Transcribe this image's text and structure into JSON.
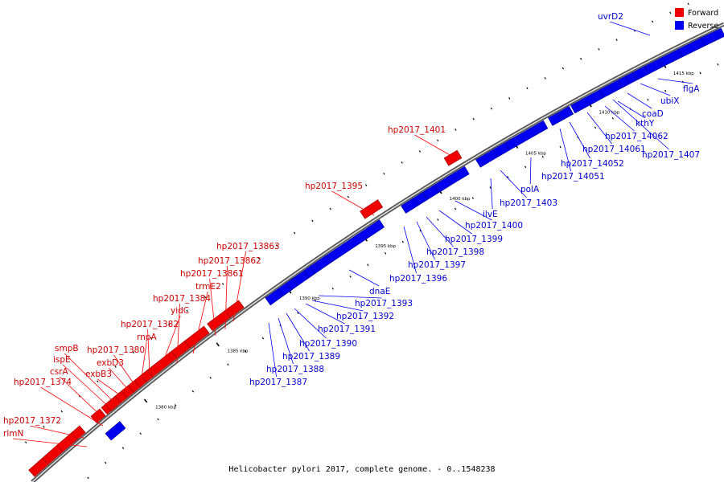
{
  "caption": "Helicobacter pylori 2017, complete genome. - 0..1548238",
  "legend": {
    "forward": {
      "label": "Forward",
      "color": "#ee0000"
    },
    "reverse": {
      "label": "Reverse",
      "color": "#0000ee"
    }
  },
  "ticks": [
    {
      "label": "1380 kbp"
    },
    {
      "label": "1385 kbp"
    },
    {
      "label": "1390 kbp"
    },
    {
      "label": "1395 kbp"
    },
    {
      "label": "1400 kbp"
    },
    {
      "label": "1405 kbp"
    },
    {
      "label": "1410 kbp"
    },
    {
      "label": "1415 kbp"
    }
  ],
  "forward_labels": [
    {
      "text": "rlmN"
    },
    {
      "text": "hp2017_1372"
    },
    {
      "text": "hp2017_1374"
    },
    {
      "text": "csrA"
    },
    {
      "text": "ispE"
    },
    {
      "text": "smpB"
    },
    {
      "text": "exbB3"
    },
    {
      "text": "exbD3"
    },
    {
      "text": "hp2017_1380"
    },
    {
      "text": "rnpA"
    },
    {
      "text": "hp2017_1382"
    },
    {
      "text": "yidC"
    },
    {
      "text": "hp2017_1384"
    },
    {
      "text": "trmE2"
    },
    {
      "text": "hp2017_13861"
    },
    {
      "text": "hp2017_13862"
    },
    {
      "text": "hp2017_13863"
    },
    {
      "text": "hp2017_1395"
    },
    {
      "text": "hp2017_1401"
    }
  ],
  "reverse_labels": [
    {
      "text": "hp2017_1387"
    },
    {
      "text": "hp2017_1388"
    },
    {
      "text": "hp2017_1389"
    },
    {
      "text": "hp2017_1390"
    },
    {
      "text": "hp2017_1391"
    },
    {
      "text": "hp2017_1392"
    },
    {
      "text": "hp2017_1393"
    },
    {
      "text": "dnaE"
    },
    {
      "text": "hp2017_1396"
    },
    {
      "text": "hp2017_1397"
    },
    {
      "text": "hp2017_1398"
    },
    {
      "text": "hp2017_1399"
    },
    {
      "text": "hp2017_1400"
    },
    {
      "text": "ilvE"
    },
    {
      "text": "hp2017_1403"
    },
    {
      "text": "polA"
    },
    {
      "text": "hp2017_14051"
    },
    {
      "text": "hp2017_14052"
    },
    {
      "text": "hp2017_14061"
    },
    {
      "text": "hp2017_14062"
    },
    {
      "text": "kthY"
    },
    {
      "text": "coaD"
    },
    {
      "text": "hp2017_1407"
    },
    {
      "text": "ubiX"
    },
    {
      "text": "flgA"
    },
    {
      "text": "uvrD2"
    }
  ]
}
